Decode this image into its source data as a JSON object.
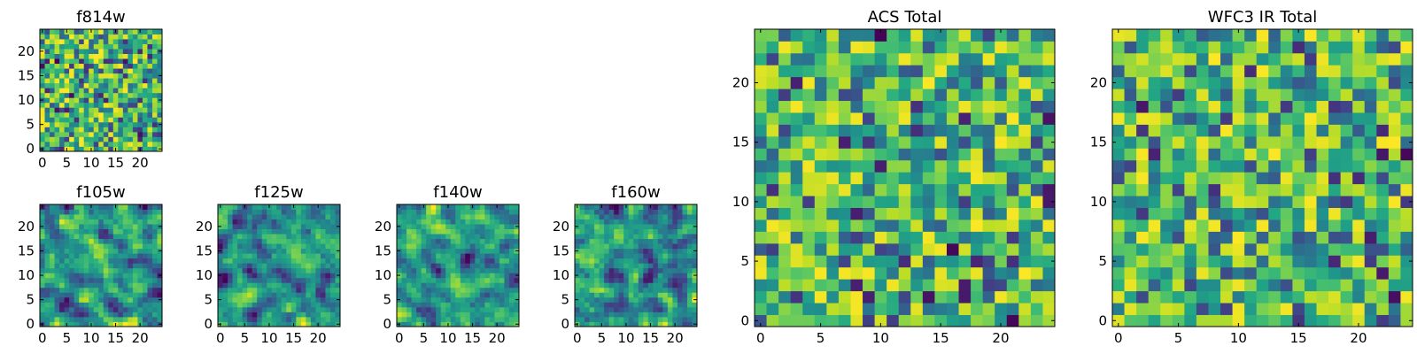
{
  "chart_data": [
    {
      "type": "heatmap",
      "title": "f814w",
      "grid_size": 25,
      "seed": 814,
      "xticks": [
        0,
        5,
        10,
        15,
        20
      ],
      "yticks": [
        0,
        5,
        10,
        15,
        20
      ],
      "xlim": [
        -0.5,
        24.5
      ],
      "ylim": [
        -0.5,
        24.5
      ],
      "colormap": "viridis"
    },
    {
      "type": "heatmap",
      "title": "f105w",
      "grid_size": 25,
      "seed": 105,
      "xticks": [
        0,
        5,
        10,
        15,
        20
      ],
      "yticks": [
        0,
        5,
        10,
        15,
        20
      ],
      "xlim": [
        -0.5,
        24.5
      ],
      "ylim": [
        -0.5,
        24.5
      ],
      "colormap": "viridis"
    },
    {
      "type": "heatmap",
      "title": "f125w",
      "grid_size": 25,
      "seed": 125,
      "xticks": [
        0,
        5,
        10,
        15,
        20
      ],
      "yticks": [
        0,
        5,
        10,
        15,
        20
      ],
      "xlim": [
        -0.5,
        24.5
      ],
      "ylim": [
        -0.5,
        24.5
      ],
      "colormap": "viridis"
    },
    {
      "type": "heatmap",
      "title": "f140w",
      "grid_size": 25,
      "seed": 140,
      "xticks": [
        0,
        5,
        10,
        15,
        20
      ],
      "yticks": [
        0,
        5,
        10,
        15,
        20
      ],
      "xlim": [
        -0.5,
        24.5
      ],
      "ylim": [
        -0.5,
        24.5
      ],
      "colormap": "viridis"
    },
    {
      "type": "heatmap",
      "title": "f160w",
      "grid_size": 25,
      "seed": 160,
      "xticks": [
        0,
        5,
        10,
        15,
        20
      ],
      "yticks": [
        0,
        5,
        10,
        15,
        20
      ],
      "xlim": [
        -0.5,
        24.5
      ],
      "ylim": [
        -0.5,
        24.5
      ],
      "colormap": "viridis"
    },
    {
      "type": "heatmap",
      "title": "ACS Total",
      "grid_size": 25,
      "seed": 901,
      "xticks": [
        0,
        5,
        10,
        15,
        20
      ],
      "yticks": [
        0,
        5,
        10,
        15,
        20
      ],
      "xlim": [
        -0.5,
        24.5
      ],
      "ylim": [
        -0.5,
        24.5
      ],
      "colormap": "viridis"
    },
    {
      "type": "heatmap",
      "title": "WFC3 IR Total",
      "grid_size": 25,
      "seed": 902,
      "xticks": [
        0,
        5,
        10,
        15,
        20
      ],
      "yticks": [
        0,
        5,
        10,
        15,
        20
      ],
      "xlim": [
        -0.5,
        24.5
      ],
      "ylim": [
        -0.5,
        24.5
      ],
      "colormap": "viridis"
    }
  ]
}
